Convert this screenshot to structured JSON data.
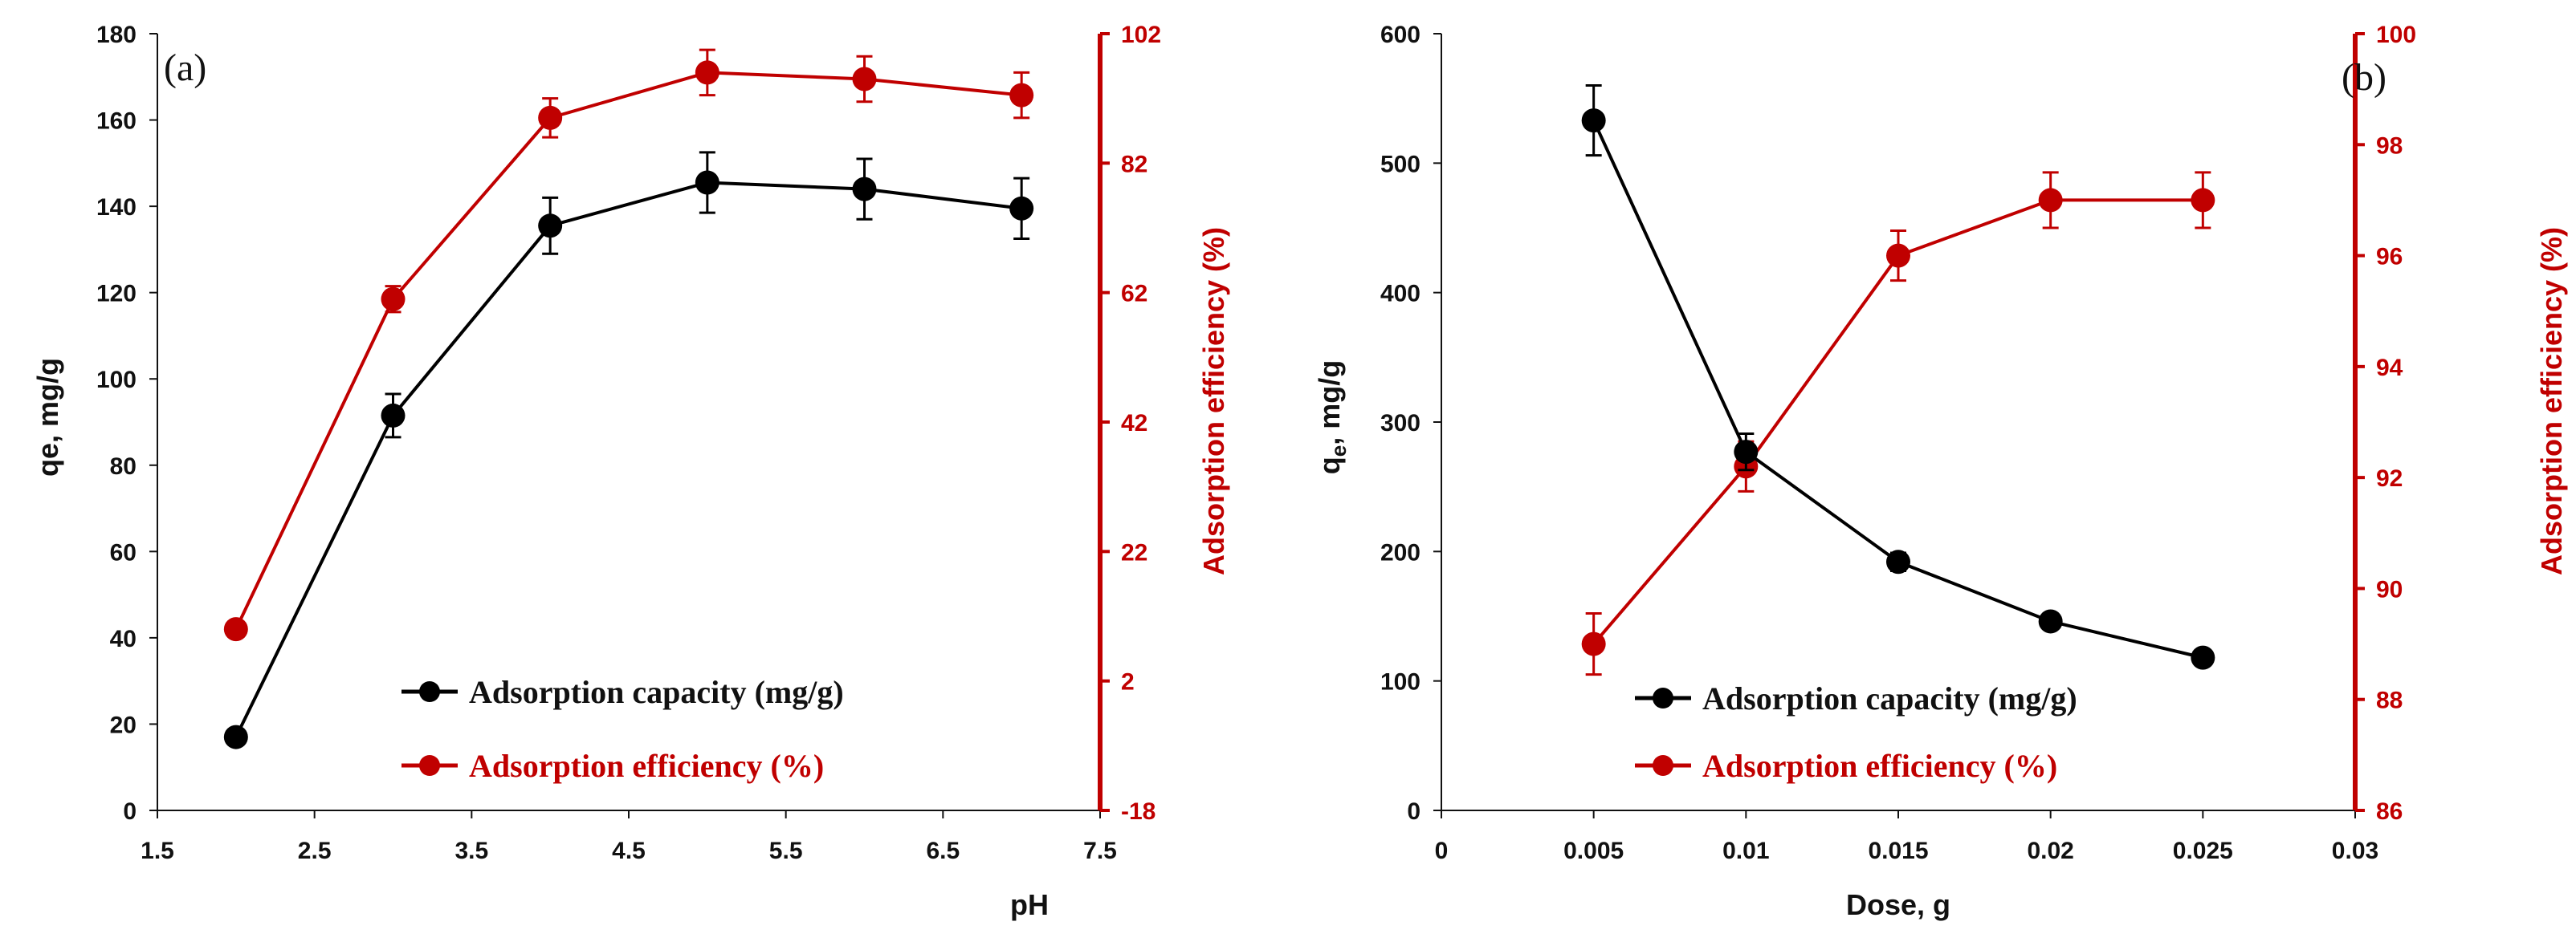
{
  "chart_data": [
    {
      "type": "line",
      "panel_label": "(a)",
      "xlabel": "pH",
      "ylabel": "qe, mg/g",
      "y2label": "Adsorption efficiency (%)",
      "xlim": [
        1.5,
        7.5
      ],
      "ylim": [
        0,
        180
      ],
      "y2lim": [
        -18,
        102
      ],
      "xticks": [
        "1.5",
        "2.5",
        "3.5",
        "4.5",
        "5.5",
        "6.5",
        "7.5"
      ],
      "xtick_values": [
        1.5,
        2.5,
        3.5,
        4.5,
        5.5,
        6.5,
        7.5
      ],
      "yticks": [
        "0",
        "20",
        "40",
        "60",
        "80",
        "100",
        "120",
        "140",
        "160",
        "180"
      ],
      "ytick_values": [
        0,
        20,
        40,
        60,
        80,
        100,
        120,
        140,
        160,
        180
      ],
      "y2ticks": [
        "-18",
        "2",
        "22",
        "42",
        "62",
        "82",
        "102"
      ],
      "y2tick_values": [
        -18,
        2,
        22,
        42,
        62,
        82,
        102
      ],
      "grid": false,
      "legend_position": "bottom-right",
      "series": [
        {
          "name": "Adsorption capacity (mg/g)",
          "axis": "left",
          "color": "#000000",
          "x": [
            2,
            3,
            4,
            5,
            6,
            7
          ],
          "values": [
            17,
            91.5,
            135.5,
            145.5,
            144,
            139.5
          ],
          "errors": [
            0,
            5,
            6.5,
            7,
            7,
            7
          ]
        },
        {
          "name": "Adsorption efficiency (%)",
          "axis": "right",
          "color": "#c00000",
          "x": [
            2,
            3,
            4,
            5,
            6,
            7
          ],
          "values": [
            10,
            61,
            89,
            96,
            95,
            92.5
          ],
          "errors": [
            0,
            2,
            3,
            3.5,
            3.5,
            3.5
          ]
        }
      ]
    },
    {
      "type": "line",
      "panel_label": "(b)",
      "xlabel": "Dose, g",
      "ylabel": "qe, mg/g",
      "ylabel_main": "q",
      "ylabel_sub": "e",
      "ylabel_rest": ", mg/g",
      "y2label": "Adsorption efficiency (%)",
      "xlim": [
        0,
        0.03
      ],
      "ylim": [
        0,
        600
      ],
      "y2lim": [
        86,
        100
      ],
      "xticks": [
        "0",
        "0.005",
        "0.01",
        "0.015",
        "0.02",
        "0.025",
        "0.03"
      ],
      "xtick_values": [
        0,
        0.005,
        0.01,
        0.015,
        0.02,
        0.025,
        0.03
      ],
      "yticks": [
        "0",
        "100",
        "200",
        "300",
        "400",
        "500",
        "600"
      ],
      "ytick_values": [
        0,
        100,
        200,
        300,
        400,
        500,
        600
      ],
      "y2ticks": [
        "86",
        "88",
        "90",
        "92",
        "94",
        "96",
        "98",
        "100"
      ],
      "y2tick_values": [
        86,
        88,
        90,
        92,
        94,
        96,
        98,
        100
      ],
      "grid": false,
      "legend_position": "bottom-center",
      "series": [
        {
          "name": "Adsorption capacity (mg/g)",
          "axis": "left",
          "color": "#000000",
          "x": [
            0.005,
            0.01,
            0.015,
            0.02,
            0.025
          ],
          "values": [
            533,
            277,
            192,
            146,
            118
          ],
          "errors": [
            27,
            14,
            7,
            5,
            4
          ]
        },
        {
          "name": "Adsorption efficiency (%)",
          "axis": "right",
          "color": "#c00000",
          "x": [
            0.005,
            0.01,
            0.015,
            0.02,
            0.025
          ],
          "values": [
            89,
            92.2,
            96,
            97,
            97
          ],
          "errors": [
            0.55,
            0.45,
            0.45,
            0.5,
            0.5
          ]
        }
      ]
    }
  ]
}
